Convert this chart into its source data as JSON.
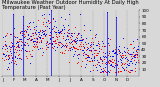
{
  "title": "Milwaukee Weather Outdoor Humidity At Daily High Temperature (Past Year)",
  "bg_color": "#d8d8d8",
  "plot_bg_color": "#d8d8d8",
  "grid_color": "#888888",
  "ylim": [
    0,
    100
  ],
  "y_ticks": [
    10,
    20,
    30,
    40,
    50,
    60,
    70,
    80,
    90,
    100
  ],
  "n_points": 365,
  "seed": 42,
  "blue_color": "#0000ff",
  "red_color": "#ff0000",
  "spike_positions": [
    28,
    55,
    130,
    280,
    305
  ],
  "spike_heights": [
    95,
    92,
    100,
    97,
    90
  ],
  "title_fontsize": 3.8,
  "tick_fontsize": 3.0,
  "marker_size": 0.5
}
